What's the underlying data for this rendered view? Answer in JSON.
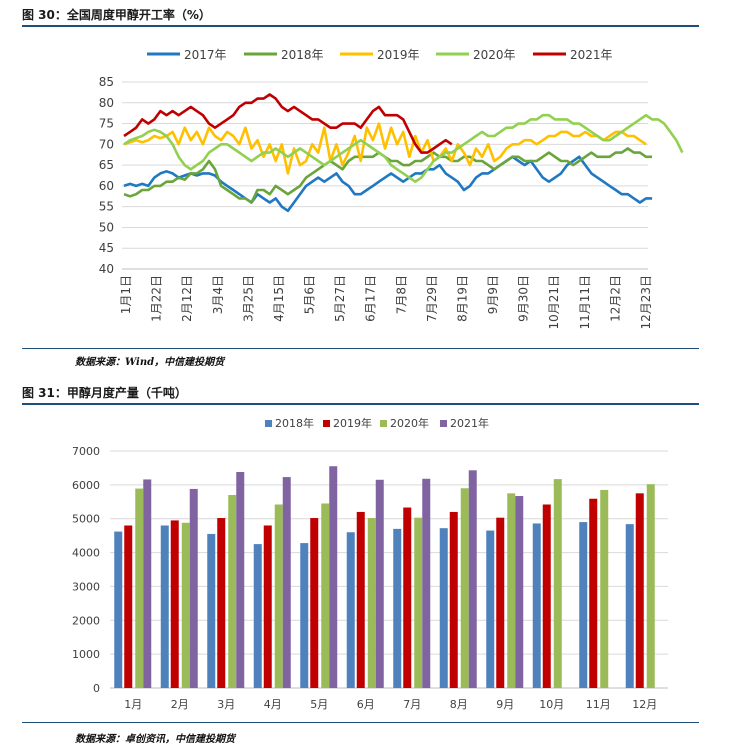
{
  "figure1": {
    "title": "图 30：全国周度甲醇开工率（%）",
    "source": "数据来源：Wind，中信建投期货"
  },
  "figure2": {
    "title": "图 31：甲醇月度产量（千吨）",
    "source": "数据来源：卓创资讯，中信建投期货"
  },
  "chart_data": [
    {
      "type": "line",
      "title": "",
      "xlabel": "",
      "ylabel": "",
      "ylim": [
        40,
        85
      ],
      "yticks": [
        40,
        45,
        50,
        55,
        60,
        65,
        70,
        75,
        80,
        85
      ],
      "grid": true,
      "legend": "top",
      "x_ticklabels": [
        "1月1日",
        "1月22日",
        "2月12日",
        "3月4日",
        "3月25日",
        "4月15日",
        "5月6日",
        "5月27日",
        "6月17日",
        "7月8日",
        "7月29日",
        "8月19日",
        "9月9日",
        "9月30日",
        "10月21日",
        "11月11日",
        "12月2日",
        "12月23日"
      ],
      "series": [
        {
          "name": "2017年",
          "color": "#1f78c1",
          "values": [
            60,
            60.5,
            60,
            60.5,
            60,
            62,
            63,
            63.5,
            63,
            62,
            62.5,
            63,
            62.5,
            63,
            63,
            62.5,
            61,
            60,
            59,
            58,
            57,
            56,
            58,
            57,
            56,
            57,
            55,
            54,
            56,
            58,
            60,
            61,
            62,
            61,
            62,
            63,
            61,
            60,
            58,
            58,
            59,
            60,
            61,
            62,
            63,
            62,
            61,
            62,
            63,
            63,
            64,
            64,
            65,
            63,
            62,
            61,
            59,
            60,
            62,
            63,
            63,
            64,
            65,
            66,
            67,
            66,
            65,
            66,
            64,
            62,
            61,
            62,
            63,
            65,
            66,
            67,
            65,
            63,
            62,
            61,
            60,
            59,
            58,
            58,
            57,
            56,
            57,
            57
          ]
        },
        {
          "name": "2018年",
          "color": "#6aa53c",
          "values": [
            58,
            57.5,
            58,
            59,
            59,
            60,
            60,
            61,
            61,
            62,
            61.5,
            63,
            63,
            64,
            66,
            64,
            60,
            59,
            58,
            57,
            57,
            56,
            59,
            59,
            58,
            60,
            59,
            58,
            59,
            60,
            62,
            63,
            64,
            65,
            66,
            65,
            64,
            66,
            67,
            67,
            67,
            67,
            68,
            67,
            66,
            66,
            65,
            65,
            66,
            66,
            67,
            68,
            67,
            67,
            66,
            66,
            67,
            67,
            66,
            66,
            65,
            64,
            65,
            66,
            67,
            67,
            66,
            66,
            66,
            67,
            68,
            67,
            66,
            66,
            65,
            66,
            67,
            68,
            67,
            67,
            67,
            68,
            68,
            69,
            68,
            68,
            67,
            67
          ]
        },
        {
          "name": "2019年",
          "color": "#ffc000",
          "values": [
            70,
            70.5,
            71,
            70.5,
            71,
            72,
            71.5,
            72,
            73,
            70,
            74,
            71,
            73,
            70,
            74,
            72,
            71,
            73,
            72,
            70,
            74,
            69,
            71,
            67,
            70,
            66,
            70,
            63,
            69,
            65,
            66,
            70,
            68,
            74,
            66,
            70,
            65,
            68,
            72,
            66,
            74,
            71,
            75,
            69,
            74,
            70,
            73,
            67,
            72,
            68,
            71,
            66,
            67,
            69,
            66,
            70,
            68,
            65,
            69,
            67,
            70,
            66,
            67,
            69,
            70,
            70,
            71,
            71,
            70,
            71,
            72,
            72,
            73,
            73,
            72,
            72,
            73,
            72,
            72,
            71,
            72,
            73,
            73,
            72,
            72,
            71,
            70
          ]
        },
        {
          "name": "2020年",
          "color": "#92d050",
          "values": [
            70,
            71,
            71.5,
            72,
            73,
            73.5,
            73,
            72,
            70,
            67,
            65,
            64,
            65,
            66,
            68,
            69,
            70,
            70,
            69,
            68,
            67,
            66,
            67,
            68,
            68,
            69,
            68,
            67,
            68,
            69,
            68,
            67,
            66,
            65,
            66,
            67,
            68,
            69,
            70,
            71,
            70,
            69,
            68,
            67,
            65,
            64,
            63,
            62,
            61,
            62,
            64,
            66,
            67,
            68,
            68,
            69,
            70,
            71,
            72,
            73,
            72,
            72,
            73,
            74,
            74,
            75,
            75,
            76,
            76,
            77,
            77,
            76,
            76,
            76,
            75,
            75,
            74,
            73,
            72,
            71,
            71,
            72,
            73,
            74,
            75,
            76,
            77,
            76,
            76,
            75,
            73,
            71,
            68
          ]
        },
        {
          "name": "2021年",
          "color": "#c00000",
          "values": [
            72,
            73,
            74,
            76,
            75,
            76,
            78,
            77,
            78,
            77,
            78,
            79,
            78,
            77,
            75,
            74,
            75,
            76,
            77,
            79,
            80,
            80,
            81,
            81,
            82,
            81,
            79,
            78,
            79,
            78,
            77,
            76,
            76,
            75,
            74,
            74,
            75,
            75,
            75,
            74,
            76,
            78,
            79,
            77,
            77,
            77,
            76,
            73,
            70,
            68,
            68,
            69,
            70,
            71,
            70
          ]
        }
      ]
    },
    {
      "type": "bar",
      "title": "",
      "xlabel": "",
      "ylabel": "",
      "ylim": [
        0,
        7000
      ],
      "yticks": [
        0,
        1000,
        2000,
        3000,
        4000,
        5000,
        6000,
        7000
      ],
      "grid": true,
      "legend": "top",
      "categories": [
        "1月",
        "2月",
        "3月",
        "4月",
        "5月",
        "6月",
        "7月",
        "8月",
        "9月",
        "10月",
        "11月",
        "12月"
      ],
      "series": [
        {
          "name": "2018年",
          "color": "#4f81bd",
          "values": [
            4620,
            4800,
            4550,
            4250,
            4280,
            4600,
            4700,
            4720,
            4650,
            4860,
            4900,
            4840
          ]
        },
        {
          "name": "2019年",
          "color": "#c00000",
          "values": [
            4800,
            4950,
            5020,
            4800,
            5020,
            5200,
            5330,
            5200,
            5030,
            5420,
            5590,
            5750
          ]
        },
        {
          "name": "2020年",
          "color": "#9bbb59",
          "values": [
            5890,
            4880,
            5700,
            5420,
            5450,
            5020,
            5030,
            5900,
            5750,
            6170,
            5850,
            6020
          ]
        },
        {
          "name": "2021年",
          "color": "#8064a2",
          "values": [
            6160,
            5880,
            6380,
            6230,
            6550,
            6150,
            6180,
            6430,
            5670,
            null,
            null,
            null
          ]
        }
      ]
    }
  ]
}
